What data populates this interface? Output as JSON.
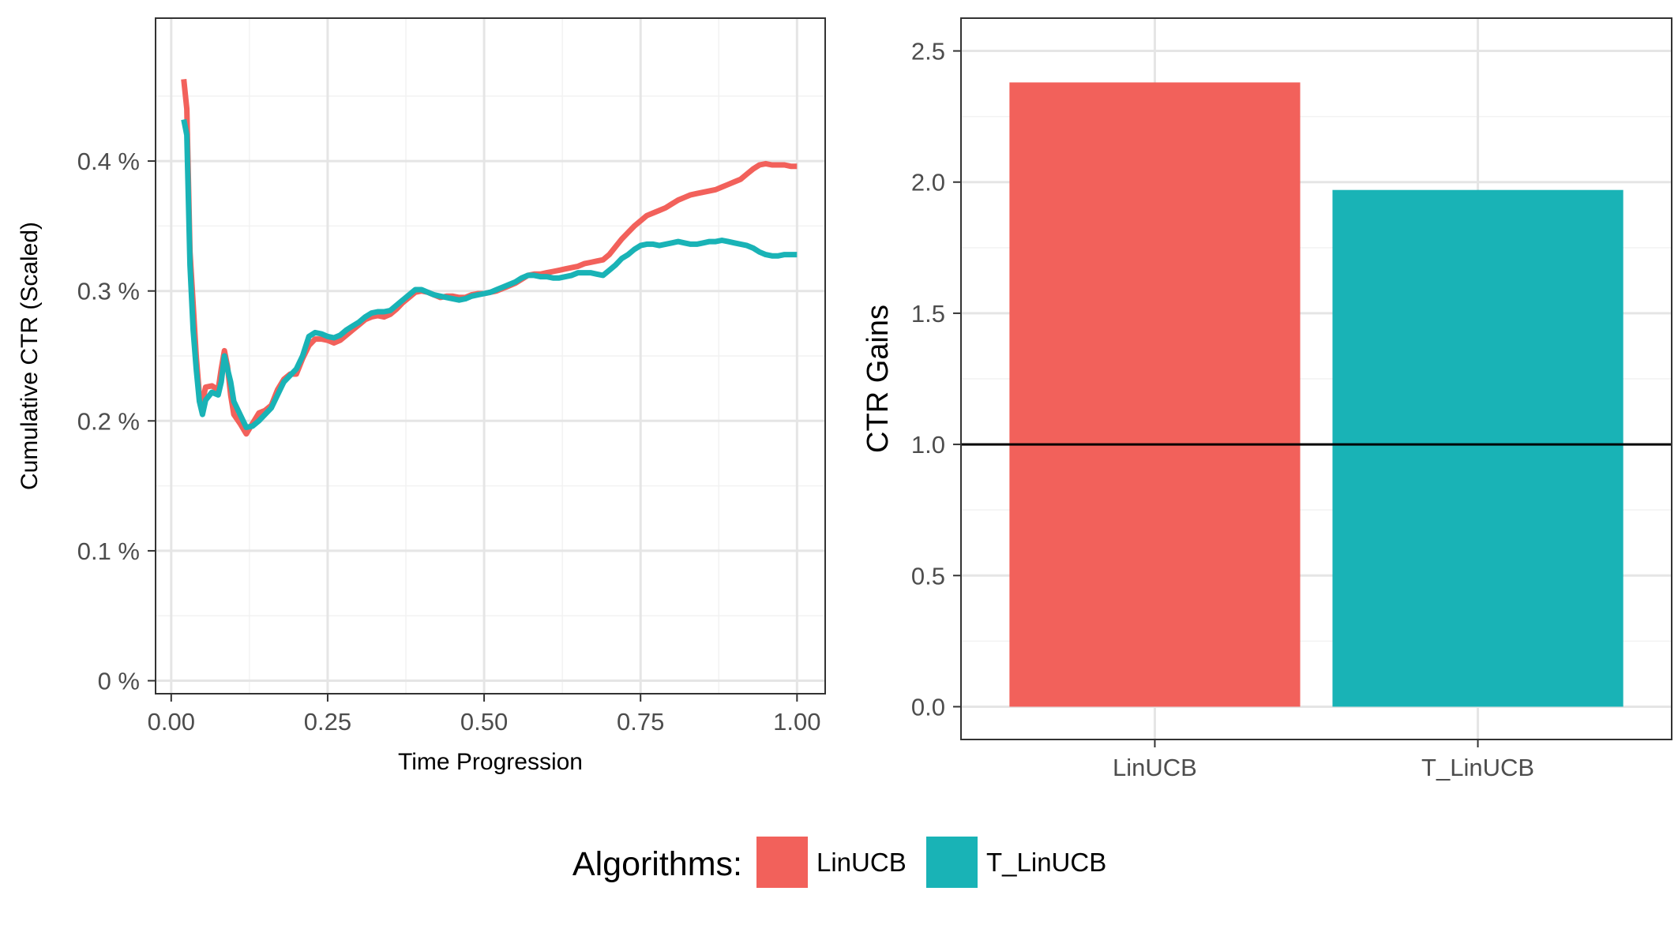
{
  "colors": {
    "LinUCB": "#F2615B",
    "T_LinUCB": "#19B3B6",
    "grid_major": "#E5E5E5",
    "grid_minor": "#F2F2F2",
    "panel_border": "#333333",
    "reference_line": "#000000"
  },
  "legend": {
    "title": "Algorithms:",
    "items": [
      {
        "label": "LinUCB",
        "color": "#F2615B"
      },
      {
        "label": "T_LinUCB",
        "color": "#19B3B6"
      }
    ],
    "position": "bottom"
  },
  "chart_data": [
    {
      "type": "line",
      "title": "",
      "xlabel": "Time Progression",
      "ylabel": "Cumulative CTR (Scaled)",
      "xlim": [
        -0.025,
        1.045
      ],
      "ylim": [
        -0.0001,
        0.0051
      ],
      "x_ticks": [
        0,
        0.25,
        0.5,
        0.75,
        1
      ],
      "x_tick_labels": [
        "0.00",
        "0.25",
        "0.50",
        "0.75",
        "1.00"
      ],
      "y_ticks": [
        0,
        0.001,
        0.002,
        0.003,
        0.004
      ],
      "y_tick_labels": [
        "0 %",
        "0.1 %",
        "0.2 %",
        "0.3 %",
        "0.4 %"
      ],
      "grid": true,
      "series": [
        {
          "name": "LinUCB",
          "points": [
            [
              0.02,
              0.00463
            ],
            [
              0.025,
              0.0044
            ],
            [
              0.03,
              0.0033
            ],
            [
              0.035,
              0.0029
            ],
            [
              0.04,
              0.0025
            ],
            [
              0.045,
              0.0022
            ],
            [
              0.05,
              0.00215
            ],
            [
              0.055,
              0.00226
            ],
            [
              0.065,
              0.00227
            ],
            [
              0.075,
              0.00224
            ],
            [
              0.08,
              0.0024
            ],
            [
              0.085,
              0.00254
            ],
            [
              0.09,
              0.00242
            ],
            [
              0.095,
              0.0022
            ],
            [
              0.1,
              0.00205
            ],
            [
              0.11,
              0.00198
            ],
            [
              0.12,
              0.0019
            ],
            [
              0.13,
              0.00198
            ],
            [
              0.14,
              0.00206
            ],
            [
              0.15,
              0.00208
            ],
            [
              0.16,
              0.00212
            ],
            [
              0.17,
              0.00224
            ],
            [
              0.18,
              0.00232
            ],
            [
              0.19,
              0.00236
            ],
            [
              0.2,
              0.00236
            ],
            [
              0.21,
              0.00248
            ],
            [
              0.22,
              0.00258
            ],
            [
              0.23,
              0.00263
            ],
            [
              0.24,
              0.00263
            ],
            [
              0.25,
              0.00262
            ],
            [
              0.26,
              0.0026
            ],
            [
              0.27,
              0.00262
            ],
            [
              0.28,
              0.00266
            ],
            [
              0.29,
              0.0027
            ],
            [
              0.3,
              0.00274
            ],
            [
              0.31,
              0.00278
            ],
            [
              0.32,
              0.0028
            ],
            [
              0.33,
              0.00281
            ],
            [
              0.34,
              0.0028
            ],
            [
              0.35,
              0.00282
            ],
            [
              0.36,
              0.00286
            ],
            [
              0.37,
              0.00291
            ],
            [
              0.38,
              0.00295
            ],
            [
              0.39,
              0.00299
            ],
            [
              0.4,
              0.003
            ],
            [
              0.41,
              0.00299
            ],
            [
              0.42,
              0.00297
            ],
            [
              0.43,
              0.00295
            ],
            [
              0.44,
              0.00296
            ],
            [
              0.45,
              0.00296
            ],
            [
              0.46,
              0.00295
            ],
            [
              0.47,
              0.00295
            ],
            [
              0.48,
              0.00297
            ],
            [
              0.49,
              0.00298
            ],
            [
              0.5,
              0.00298
            ],
            [
              0.51,
              0.00299
            ],
            [
              0.52,
              0.003
            ],
            [
              0.53,
              0.00302
            ],
            [
              0.54,
              0.00304
            ],
            [
              0.55,
              0.00306
            ],
            [
              0.56,
              0.00309
            ],
            [
              0.57,
              0.00312
            ],
            [
              0.58,
              0.00313
            ],
            [
              0.59,
              0.00313
            ],
            [
              0.6,
              0.00314
            ],
            [
              0.61,
              0.00315
            ],
            [
              0.62,
              0.00316
            ],
            [
              0.63,
              0.00317
            ],
            [
              0.64,
              0.00318
            ],
            [
              0.65,
              0.00319
            ],
            [
              0.66,
              0.00321
            ],
            [
              0.67,
              0.00322
            ],
            [
              0.68,
              0.00323
            ],
            [
              0.69,
              0.00324
            ],
            [
              0.7,
              0.00328
            ],
            [
              0.71,
              0.00334
            ],
            [
              0.72,
              0.0034
            ],
            [
              0.73,
              0.00345
            ],
            [
              0.74,
              0.0035
            ],
            [
              0.75,
              0.00354
            ],
            [
              0.76,
              0.00358
            ],
            [
              0.77,
              0.0036
            ],
            [
              0.78,
              0.00362
            ],
            [
              0.79,
              0.00364
            ],
            [
              0.8,
              0.00367
            ],
            [
              0.81,
              0.0037
            ],
            [
              0.82,
              0.00372
            ],
            [
              0.83,
              0.00374
            ],
            [
              0.84,
              0.00375
            ],
            [
              0.85,
              0.00376
            ],
            [
              0.86,
              0.00377
            ],
            [
              0.87,
              0.00378
            ],
            [
              0.88,
              0.0038
            ],
            [
              0.89,
              0.00382
            ],
            [
              0.9,
              0.00384
            ],
            [
              0.91,
              0.00386
            ],
            [
              0.92,
              0.0039
            ],
            [
              0.93,
              0.00394
            ],
            [
              0.94,
              0.00397
            ],
            [
              0.95,
              0.00398
            ],
            [
              0.96,
              0.00397
            ],
            [
              0.97,
              0.00397
            ],
            [
              0.98,
              0.00397
            ],
            [
              0.99,
              0.00396
            ],
            [
              1.0,
              0.00396
            ]
          ]
        },
        {
          "name": "T_LinUCB",
          "points": [
            [
              0.02,
              0.00432
            ],
            [
              0.025,
              0.0042
            ],
            [
              0.03,
              0.0032
            ],
            [
              0.035,
              0.0027
            ],
            [
              0.04,
              0.0024
            ],
            [
              0.045,
              0.00215
            ],
            [
              0.05,
              0.00205
            ],
            [
              0.055,
              0.00216
            ],
            [
              0.065,
              0.00222
            ],
            [
              0.075,
              0.0022
            ],
            [
              0.08,
              0.0023
            ],
            [
              0.085,
              0.0025
            ],
            [
              0.09,
              0.0024
            ],
            [
              0.095,
              0.0023
            ],
            [
              0.1,
              0.00215
            ],
            [
              0.11,
              0.00205
            ],
            [
              0.12,
              0.00195
            ],
            [
              0.13,
              0.00196
            ],
            [
              0.14,
              0.002
            ],
            [
              0.15,
              0.00205
            ],
            [
              0.16,
              0.0021
            ],
            [
              0.17,
              0.0022
            ],
            [
              0.18,
              0.0023
            ],
            [
              0.19,
              0.00235
            ],
            [
              0.2,
              0.0024
            ],
            [
              0.21,
              0.0025
            ],
            [
              0.22,
              0.00265
            ],
            [
              0.23,
              0.00268
            ],
            [
              0.24,
              0.00267
            ],
            [
              0.25,
              0.00265
            ],
            [
              0.26,
              0.00264
            ],
            [
              0.27,
              0.00266
            ],
            [
              0.28,
              0.0027
            ],
            [
              0.29,
              0.00273
            ],
            [
              0.3,
              0.00276
            ],
            [
              0.31,
              0.0028
            ],
            [
              0.32,
              0.00283
            ],
            [
              0.33,
              0.00284
            ],
            [
              0.34,
              0.00284
            ],
            [
              0.35,
              0.00285
            ],
            [
              0.36,
              0.00289
            ],
            [
              0.37,
              0.00293
            ],
            [
              0.38,
              0.00297
            ],
            [
              0.39,
              0.00301
            ],
            [
              0.4,
              0.00301
            ],
            [
              0.41,
              0.00299
            ],
            [
              0.42,
              0.00297
            ],
            [
              0.43,
              0.00296
            ],
            [
              0.44,
              0.00295
            ],
            [
              0.45,
              0.00294
            ],
            [
              0.46,
              0.00293
            ],
            [
              0.47,
              0.00294
            ],
            [
              0.48,
              0.00296
            ],
            [
              0.49,
              0.00297
            ],
            [
              0.5,
              0.00298
            ],
            [
              0.51,
              0.00299
            ],
            [
              0.52,
              0.00301
            ],
            [
              0.53,
              0.00303
            ],
            [
              0.54,
              0.00305
            ],
            [
              0.55,
              0.00307
            ],
            [
              0.56,
              0.0031
            ],
            [
              0.57,
              0.00312
            ],
            [
              0.58,
              0.00312
            ],
            [
              0.59,
              0.00311
            ],
            [
              0.6,
              0.00311
            ],
            [
              0.61,
              0.0031
            ],
            [
              0.62,
              0.0031
            ],
            [
              0.63,
              0.00311
            ],
            [
              0.64,
              0.00312
            ],
            [
              0.65,
              0.00314
            ],
            [
              0.66,
              0.00314
            ],
            [
              0.67,
              0.00314
            ],
            [
              0.68,
              0.00313
            ],
            [
              0.69,
              0.00312
            ],
            [
              0.7,
              0.00316
            ],
            [
              0.71,
              0.0032
            ],
            [
              0.72,
              0.00325
            ],
            [
              0.73,
              0.00328
            ],
            [
              0.74,
              0.00332
            ],
            [
              0.75,
              0.00335
            ],
            [
              0.76,
              0.00336
            ],
            [
              0.77,
              0.00336
            ],
            [
              0.78,
              0.00335
            ],
            [
              0.79,
              0.00336
            ],
            [
              0.8,
              0.00337
            ],
            [
              0.81,
              0.00338
            ],
            [
              0.82,
              0.00337
            ],
            [
              0.83,
              0.00336
            ],
            [
              0.84,
              0.00336
            ],
            [
              0.85,
              0.00337
            ],
            [
              0.86,
              0.00338
            ],
            [
              0.87,
              0.00338
            ],
            [
              0.88,
              0.00339
            ],
            [
              0.89,
              0.00338
            ],
            [
              0.9,
              0.00337
            ],
            [
              0.91,
              0.00336
            ],
            [
              0.92,
              0.00335
            ],
            [
              0.93,
              0.00333
            ],
            [
              0.94,
              0.0033
            ],
            [
              0.95,
              0.00328
            ],
            [
              0.96,
              0.00327
            ],
            [
              0.97,
              0.00327
            ],
            [
              0.98,
              0.00328
            ],
            [
              0.99,
              0.00328
            ],
            [
              1.0,
              0.00328
            ]
          ]
        }
      ]
    },
    {
      "type": "bar",
      "title": "",
      "xlabel": "",
      "ylabel": "CTR Gains",
      "categories": [
        "LinUCB",
        "T_LinUCB"
      ],
      "values": [
        2.38,
        1.97
      ],
      "bar_colors": [
        "#F2615B",
        "#19B3B6"
      ],
      "ylim": [
        -0.125,
        2.625
      ],
      "y_ticks": [
        0,
        0.5,
        1,
        1.5,
        2,
        2.5
      ],
      "y_tick_labels": [
        "0.0",
        "0.5",
        "1.0",
        "1.5",
        "2.0",
        "2.5"
      ],
      "reference_line": 1.0,
      "grid": true
    }
  ]
}
